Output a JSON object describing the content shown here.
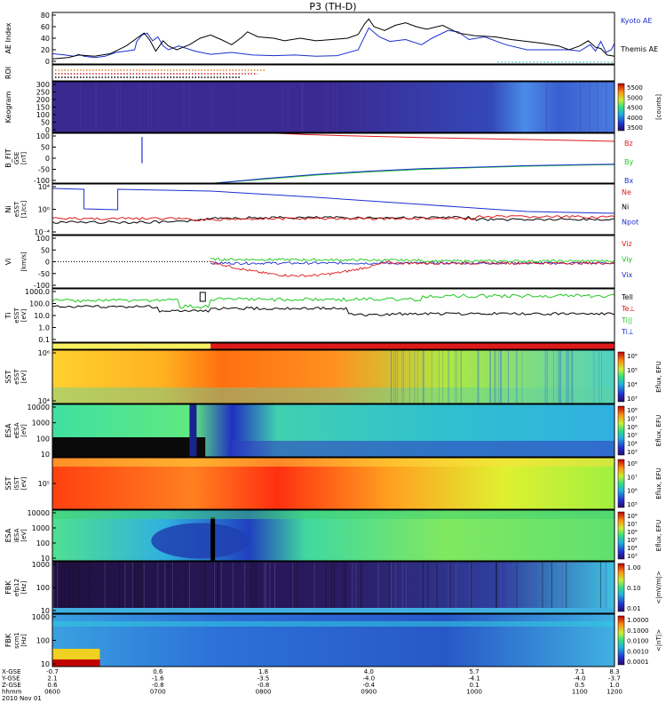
{
  "title": "P3 (TH-D)",
  "colors": {
    "kyoto": "#1c2fb0",
    "themis": "#000000",
    "red": "#dd1a1a",
    "green": "#1ec81e",
    "blue": "#1c2fd0",
    "black": "#000000",
    "cyan": "#30c8c8"
  },
  "chart_data": [
    {
      "type": "line",
      "panel": "ae",
      "ylabel": "AE Index",
      "ylim": [
        0,
        80
      ],
      "yticks": [
        "80",
        "60",
        "40",
        "20",
        "0"
      ],
      "series": [
        {
          "name": "Kyoto AE",
          "color": "blue",
          "points": [
            [
              0,
              16
            ],
            [
              0.12,
              14
            ],
            [
              0.2,
              12
            ],
            [
              0.25,
              15
            ],
            [
              0.3,
              12
            ],
            [
              0.4,
              10
            ],
            [
              0.5,
              12
            ],
            [
              0.6,
              18
            ],
            [
              0.7,
              20
            ],
            [
              0.78,
              22
            ],
            [
              0.8,
              35
            ],
            [
              0.85,
              45
            ],
            [
              0.9,
              48
            ],
            [
              0.95,
              36
            ],
            [
              1.0,
              42
            ],
            [
              1.05,
              28
            ],
            [
              1.1,
              22
            ],
            [
              1.2,
              28
            ],
            [
              1.35,
              20
            ],
            [
              1.5,
              15
            ],
            [
              1.7,
              18
            ],
            [
              1.9,
              14
            ],
            [
              2.1,
              13
            ],
            [
              2.3,
              14
            ],
            [
              2.5,
              12
            ],
            [
              2.7,
              13
            ],
            [
              2.9,
              22
            ],
            [
              3.0,
              56
            ],
            [
              3.1,
              42
            ],
            [
              3.2,
              35
            ],
            [
              3.35,
              38
            ],
            [
              3.5,
              30
            ],
            [
              3.6,
              40
            ],
            [
              3.75,
              52
            ],
            [
              3.85,
              50
            ],
            [
              3.95,
              38
            ],
            [
              4.1,
              42
            ],
            [
              4.3,
              30
            ],
            [
              4.5,
              22
            ],
            [
              4.7,
              22
            ],
            [
              4.9,
              22
            ],
            [
              5.0,
              20
            ],
            [
              5.1,
              30
            ],
            [
              5.15,
              20
            ],
            [
              5.2,
              35
            ],
            [
              5.25,
              18
            ],
            [
              5.3,
              22
            ],
            [
              5.33,
              32
            ]
          ]
        },
        {
          "name": "Themis AE",
          "color": "themis",
          "points": [
            [
              0,
              8
            ],
            [
              0.15,
              10
            ],
            [
              0.25,
              14
            ],
            [
              0.4,
              12
            ],
            [
              0.55,
              16
            ],
            [
              0.7,
              28
            ],
            [
              0.8,
              40
            ],
            [
              0.87,
              48
            ],
            [
              0.92,
              38
            ],
            [
              0.98,
              20
            ],
            [
              1.05,
              36
            ],
            [
              1.1,
              28
            ],
            [
              1.18,
              22
            ],
            [
              1.3,
              30
            ],
            [
              1.4,
              40
            ],
            [
              1.5,
              45
            ],
            [
              1.6,
              38
            ],
            [
              1.7,
              30
            ],
            [
              1.8,
              42
            ],
            [
              1.85,
              50
            ],
            [
              1.95,
              42
            ],
            [
              2.1,
              40
            ],
            [
              2.2,
              36
            ],
            [
              2.35,
              40
            ],
            [
              2.5,
              36
            ],
            [
              2.65,
              38
            ],
            [
              2.8,
              40
            ],
            [
              2.9,
              46
            ],
            [
              2.96,
              62
            ],
            [
              3.0,
              70
            ],
            [
              3.05,
              58
            ],
            [
              3.15,
              52
            ],
            [
              3.25,
              60
            ],
            [
              3.35,
              64
            ],
            [
              3.45,
              58
            ],
            [
              3.55,
              54
            ],
            [
              3.7,
              60
            ],
            [
              3.85,
              48
            ],
            [
              4.0,
              44
            ],
            [
              4.2,
              42
            ],
            [
              4.35,
              38
            ],
            [
              4.5,
              35
            ],
            [
              4.65,
              32
            ],
            [
              4.8,
              28
            ],
            [
              4.9,
              22
            ],
            [
              5.0,
              28
            ],
            [
              5.08,
              36
            ],
            [
              5.15,
              26
            ],
            [
              5.2,
              24
            ],
            [
              5.26,
              14
            ],
            [
              5.33,
              12
            ]
          ]
        }
      ]
    },
    {
      "type": "bar",
      "panel": "roi",
      "ylabel": "ROI"
    },
    {
      "type": "heatmap",
      "panel": "keogram",
      "ylabel": "Keogram",
      "ylim": [
        0,
        300
      ],
      "yticks": [
        "300",
        "250",
        "200",
        "150",
        "100",
        "50",
        "0"
      ],
      "cbar": {
        "label": "[counts]",
        "ticks": [
          "5500",
          "5000",
          "4500",
          "4000",
          "3500"
        ]
      }
    },
    {
      "type": "line",
      "panel": "bfit",
      "ylabel": "B_FIT",
      "ysub": "GSE",
      "yunit": "[nT]",
      "ylim": [
        -100,
        100
      ],
      "yticks": [
        "100",
        "50",
        "0",
        "-50",
        "-100"
      ],
      "series": [
        {
          "name": "Bz",
          "color": "red",
          "points": [
            [
              2.13,
              100
            ],
            [
              2.4,
              95
            ],
            [
              2.8,
              90
            ],
            [
              3.2,
              86
            ],
            [
              3.6,
              82
            ],
            [
              4.0,
              79
            ],
            [
              4.4,
              76
            ],
            [
              4.8,
              73
            ],
            [
              5.33,
              68
            ]
          ]
        },
        {
          "name": "By",
          "color": "green",
          "points": [
            [
              1.53,
              -100
            ],
            [
              2.0,
              -85
            ],
            [
              2.5,
              -68
            ],
            [
              3.0,
              -55
            ],
            [
              3.5,
              -45
            ],
            [
              4.0,
              -38
            ],
            [
              4.5,
              -32
            ],
            [
              5.0,
              -28
            ],
            [
              5.33,
              -26
            ]
          ]
        },
        {
          "name": "Bx",
          "color": "blue",
          "points": [
            [
              1.55,
              -100
            ],
            [
              2.0,
              -82
            ],
            [
              2.5,
              -65
            ],
            [
              3.0,
              -52
            ],
            [
              3.5,
              -42
            ],
            [
              4.0,
              -36
            ],
            [
              4.5,
              -30
            ],
            [
              5.0,
              -26
            ],
            [
              5.33,
              -24
            ]
          ]
        }
      ]
    },
    {
      "type": "line",
      "panel": "ni",
      "ylabel": "Ni",
      "ysub": "eSST",
      "yunit": "[1/cc]",
      "yticks": [
        "10⁴",
        "10⁰",
        "10⁻⁴"
      ],
      "legend": [
        "Ne",
        "Ni",
        "Npot"
      ]
    },
    {
      "type": "line",
      "panel": "vi",
      "ylabel": "Vi",
      "yunit": "[km/s]",
      "ylim": [
        -150,
        150
      ],
      "yticks": [
        "100",
        "50",
        "0",
        "-50",
        "-100"
      ],
      "legend": [
        "Viz",
        "Viy",
        "Vix"
      ]
    },
    {
      "type": "line",
      "panel": "ti",
      "ylabel": "Ti",
      "ysub": "eSST",
      "yunit": "[eV]",
      "yticks": [
        "1000.0",
        "100.0",
        "10.0",
        "1.0",
        "0.1"
      ],
      "legend": [
        "Tell",
        "Te⊥",
        "Ti||",
        "Ti⊥"
      ]
    },
    {
      "type": "heatmap",
      "panel": "esst",
      "ylabel": "SST",
      "ysub": "eSST",
      "yunit": "[eV]",
      "yticks": [
        "10⁶",
        "10⁴"
      ],
      "cbar": {
        "label": "Eflux, EFU",
        "ticks": [
          "10⁶",
          "10⁵",
          "10⁴",
          "10³"
        ]
      }
    },
    {
      "type": "heatmap",
      "panel": "eesa",
      "ylabel": "ESA",
      "ysub": "eESA",
      "yunit": "[eV]",
      "yticks": [
        "10000",
        "1000",
        "100",
        "10"
      ],
      "cbar": {
        "label": "Eflux, EFU",
        "ticks": [
          "10⁸",
          "10⁷",
          "10⁶",
          "10⁵",
          "10⁴",
          "10³"
        ]
      }
    },
    {
      "type": "heatmap",
      "panel": "isst",
      "ylabel": "SST",
      "ysub": "iSST",
      "yunit": "[eV]",
      "yticks": [
        "10⁵"
      ],
      "cbar": {
        "label": "Eflux, EFU",
        "ticks": [
          "10⁸",
          "10⁷",
          "10⁶",
          "10⁵"
        ]
      }
    },
    {
      "type": "heatmap",
      "panel": "iesa",
      "ylabel": "ESA",
      "ysub": "iESA",
      "yunit": "[eV]",
      "yticks": [
        "10000",
        "1000",
        "100",
        "10"
      ],
      "cbar": {
        "label": "Eflux, EFU",
        "ticks": [
          "10⁸",
          "10⁷",
          "10⁶",
          "10⁵",
          "10⁴",
          "10³"
        ]
      }
    },
    {
      "type": "heatmap",
      "panel": "fbk1",
      "ylabel": "FBK",
      "ysub": "efp12",
      "yunit": "[Hz]",
      "yticks": [
        "1000",
        "100",
        "10"
      ],
      "cbar": {
        "label": "<|mV/m|>",
        "ticks": [
          "1.00",
          "0.10",
          "0.01"
        ]
      }
    },
    {
      "type": "heatmap",
      "panel": "fbk2",
      "ylabel": "FBK",
      "ysub": "scm1",
      "yunit": "[Hz]",
      "yticks": [
        "1000",
        "100",
        "10"
      ],
      "cbar": {
        "label": "<|nT|>",
        "ticks": [
          "1.0000",
          "0.1000",
          "0.0100",
          "0.0010",
          "0.0001"
        ]
      }
    }
  ],
  "axis": {
    "rows": [
      {
        "label": "X-GSE",
        "values": [
          "-0.7",
          "0.6",
          "1.8",
          "4.0",
          "5.7",
          "7.1",
          "8.3"
        ]
      },
      {
        "label": "Y-GSE",
        "values": [
          "2.1",
          "-1.6",
          "-3.5",
          "-4.0",
          "-4.1",
          "-4.0",
          "-3.7"
        ]
      },
      {
        "label": "Z-GSE",
        "values": [
          "0.6",
          "-0.8",
          "-0.8",
          "-0.4",
          "0.1",
          "0.5",
          "1.0"
        ]
      },
      {
        "label": "hhmm",
        "values": [
          "0600",
          "0700",
          "0800",
          "0900",
          "1000",
          "1100",
          "1200"
        ]
      }
    ],
    "date": "2010 Nov 01"
  }
}
